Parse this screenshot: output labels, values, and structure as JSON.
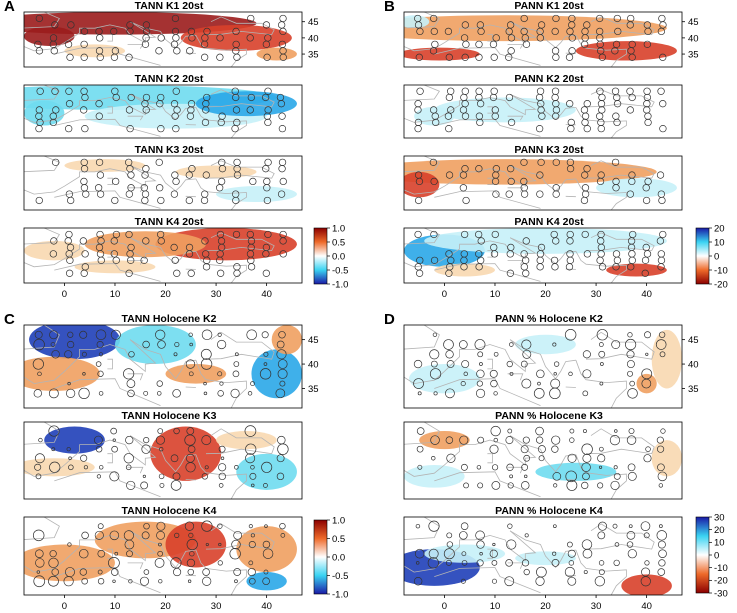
{
  "colors": {
    "t_pos_strong": "#9b1c1c",
    "t_pos_mid": "#d8402a",
    "t_pos_weak": "#f0a060",
    "t_pos_faint": "#f8d8b0",
    "t_neg_faint": "#c6f1f8",
    "t_neg_weak": "#6fdcf0",
    "t_neg_mid": "#2aa7e8",
    "t_neg_strong": "#1f3fb8",
    "coast": "#b4b4b4",
    "circle": "#333333"
  },
  "chart_data": {
    "type": "heatmap",
    "x_ticks": [
      "0",
      "10",
      "20",
      "30",
      "40"
    ],
    "y_ticks": [
      "45",
      "40",
      "35"
    ],
    "xlim": [
      -8,
      47
    ],
    "ylim": [
      31,
      48
    ],
    "panels": [
      {
        "label": "A",
        "title": "TANN K1 20st",
        "var": "temperature anomaly",
        "pattern": "warm_north_strong"
      },
      {
        "label": "",
        "title": "TANN K2 20st",
        "var": "temperature anomaly",
        "pattern": "cool_broad"
      },
      {
        "label": "",
        "title": "TANN K3 20st",
        "var": "temperature anomaly",
        "pattern": "near_zero"
      },
      {
        "label": "",
        "title": "TANN K4 20st",
        "var": "temperature anomaly",
        "pattern": "warm_east"
      },
      {
        "label": "B",
        "title": "PANN K1 20st",
        "var": "precipitation anomaly",
        "pattern": "dry_broad"
      },
      {
        "label": "",
        "title": "PANN K2 20st",
        "var": "precipitation anomaly",
        "pattern": "wet_weak"
      },
      {
        "label": "",
        "title": "PANN K3 20st",
        "var": "precipitation anomaly",
        "pattern": "dry_moderate"
      },
      {
        "label": "",
        "title": "PANN K4 20st",
        "var": "precipitation anomaly",
        "pattern": "wet_west_dry_southeast"
      },
      {
        "label": "C",
        "title": "TANN Holocene K2",
        "var": "temperature anomaly",
        "pattern": "cold_northwest_warm_south"
      },
      {
        "label": "",
        "title": "TANN Holocene K3",
        "var": "temperature anomaly",
        "pattern": "warm_center_cool_east"
      },
      {
        "label": "",
        "title": "TANN Holocene K4",
        "var": "temperature anomaly",
        "pattern": "warm_broad_cool_southeast"
      },
      {
        "label": "D",
        "title": "PANN % Holocene K2",
        "var": "precipitation % anomaly",
        "pattern": "wet_weak_west"
      },
      {
        "label": "",
        "title": "PANN % Holocene K3",
        "var": "precipitation % anomaly",
        "pattern": "mixed_weak"
      },
      {
        "label": "",
        "title": "PANN % Holocene K4",
        "var": "precipitation % anomaly",
        "pattern": "wet_west_dry_east"
      }
    ],
    "colorbars": [
      {
        "name": "TANN 20st",
        "ticks": [
          "1.0",
          "0.5",
          "0.0",
          "-0.5",
          "-1.0"
        ],
        "range": [
          -1.0,
          1.0
        ],
        "scheme": "temperature"
      },
      {
        "name": "PANN 20st",
        "ticks": [
          "20",
          "10",
          "0",
          "-10",
          "-20"
        ],
        "range": [
          -20,
          20
        ],
        "scheme": "precipitation"
      },
      {
        "name": "TANN Holocene",
        "ticks": [
          "1.0",
          "0.5",
          "0.0",
          "-0.5",
          "-1.0"
        ],
        "range": [
          -1.0,
          1.0
        ],
        "scheme": "temperature"
      },
      {
        "name": "PANN % Holocene",
        "ticks": [
          "30",
          "20",
          "10",
          "0",
          "-10",
          "-20",
          "-30"
        ],
        "range": [
          -30,
          30
        ],
        "scheme": "precipitation"
      }
    ]
  }
}
